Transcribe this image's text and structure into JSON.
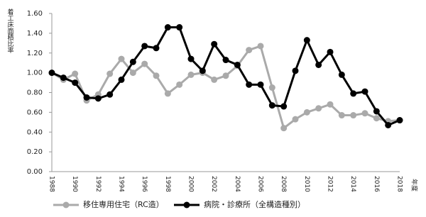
{
  "chart_data": {
    "type": "line",
    "y_label": "着工床面積比率",
    "x_label": "年度",
    "categories": [
      "1988",
      null,
      "1990",
      null,
      "1992",
      null,
      "1994",
      null,
      "1996",
      null,
      "1998",
      null,
      "2000",
      null,
      "2002",
      null,
      "2004",
      null,
      "2006",
      null,
      "2008",
      null,
      "2010",
      null,
      "2012",
      null,
      "2014",
      null,
      "2016",
      null,
      "2018"
    ],
    "series": [
      {
        "name": "移住専用住宅（RC造）",
        "color": "#aaaaaa",
        "values": [
          1.0,
          0.93,
          0.99,
          0.72,
          0.78,
          0.99,
          1.14,
          1.0,
          1.09,
          0.97,
          0.79,
          0.88,
          0.98,
          1.0,
          0.93,
          0.97,
          1.07,
          1.23,
          1.27,
          0.85,
          0.44,
          0.53,
          0.6,
          0.64,
          0.68,
          0.57,
          0.57,
          0.59,
          0.54,
          0.51,
          0.52
        ]
      },
      {
        "name": "病院・診療所（全構造種別）",
        "color": "#000000",
        "values": [
          1.0,
          0.95,
          0.9,
          0.75,
          0.74,
          0.78,
          0.93,
          1.11,
          1.27,
          1.25,
          1.46,
          1.46,
          1.14,
          1.02,
          1.29,
          1.13,
          1.08,
          0.88,
          0.88,
          0.67,
          0.66,
          1.02,
          1.33,
          1.08,
          1.21,
          0.98,
          0.79,
          0.81,
          0.61,
          0.47,
          0.52
        ]
      }
    ],
    "ylim": [
      0,
      1.6
    ],
    "yticks": [
      {
        "value": 0,
        "label": "0.00"
      },
      {
        "value": 0.2,
        "label": "0.20"
      },
      {
        "value": 0.4,
        "label": "0.40"
      },
      {
        "value": 0.6,
        "label": "0.60"
      },
      {
        "value": 0.8,
        "label": "0.80"
      },
      {
        "value": 1.0,
        "label": "1.00"
      },
      {
        "value": 1.2,
        "label": "1.20"
      },
      {
        "value": 1.4,
        "label": "1.40"
      },
      {
        "value": 1.6,
        "label": "1.60"
      }
    ],
    "grid": false,
    "legend": "bottom"
  }
}
